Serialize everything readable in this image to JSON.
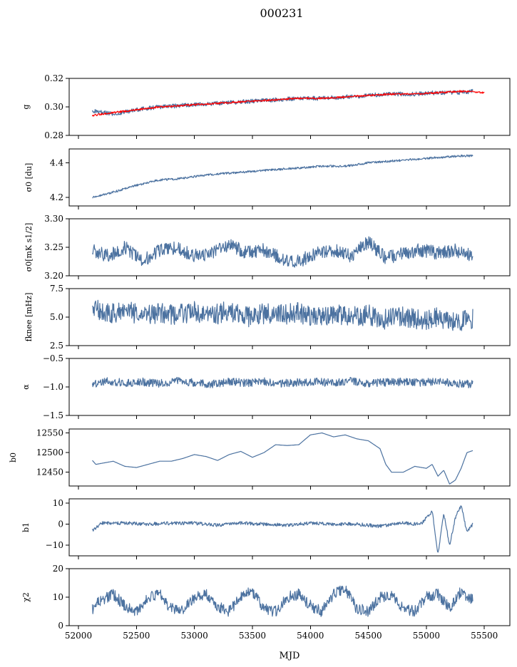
{
  "title": "000231",
  "x_label": "MJD",
  "x_ticks": [
    52000,
    52500,
    53000,
    53500,
    54000,
    54500,
    55000,
    55500
  ],
  "colors": {
    "series": "#4c72a0",
    "fit": "#ff0000"
  },
  "chart_data": [
    {
      "type": "line",
      "ylabel": "g",
      "ylim": [
        0.28,
        0.32
      ],
      "yticks": [
        "0.32",
        "0.30",
        "0.28"
      ],
      "xlim": [
        51920,
        55720
      ],
      "series": [
        {
          "role": "data",
          "x": [
            52120,
            52300,
            52500,
            52700,
            52900,
            53100,
            53300,
            53500,
            53700,
            53900,
            54100,
            54300,
            54500,
            54700,
            54900,
            55100,
            55300,
            55400
          ],
          "values": [
            0.297,
            0.295,
            0.298,
            0.3,
            0.301,
            0.302,
            0.303,
            0.304,
            0.305,
            0.306,
            0.306,
            0.307,
            0.308,
            0.309,
            0.309,
            0.31,
            0.31,
            0.311
          ]
        },
        {
          "role": "fit",
          "x": [
            52120,
            52300,
            52500,
            52700,
            52900,
            53100,
            53300,
            53500,
            53700,
            53900,
            54100,
            54300,
            54500,
            54700,
            54900,
            55100,
            55300,
            55500
          ],
          "values": [
            0.294,
            0.296,
            0.298,
            0.3,
            0.301,
            0.302,
            0.303,
            0.304,
            0.305,
            0.306,
            0.306,
            0.307,
            0.308,
            0.309,
            0.309,
            0.31,
            0.311,
            0.31
          ]
        }
      ]
    },
    {
      "type": "line",
      "ylabel": "σ0 [du]",
      "ylim": [
        4.15,
        4.48
      ],
      "yticks": [
        "4.4",
        "4.2"
      ],
      "xlim": [
        51920,
        55720
      ],
      "series": [
        {
          "role": "data",
          "x": [
            52120,
            52300,
            52500,
            52700,
            52900,
            53100,
            53300,
            53500,
            53700,
            53900,
            54100,
            54300,
            54500,
            54700,
            54900,
            55100,
            55300,
            55400
          ],
          "values": [
            4.2,
            4.23,
            4.27,
            4.3,
            4.31,
            4.33,
            4.34,
            4.35,
            4.36,
            4.37,
            4.38,
            4.38,
            4.4,
            4.41,
            4.42,
            4.43,
            4.44,
            4.44
          ]
        }
      ]
    },
    {
      "type": "line",
      "ylabel": "σ0[mK s1/2]",
      "ylim": [
        3.2,
        3.3
      ],
      "yticks": [
        "3.30",
        "3.25",
        "3.20"
      ],
      "xlim": [
        51920,
        55720
      ],
      "series": [
        {
          "role": "data",
          "x": [
            52120,
            52250,
            52400,
            52550,
            52700,
            52850,
            53000,
            53150,
            53300,
            53450,
            53600,
            53750,
            53900,
            54050,
            54200,
            54350,
            54500,
            54650,
            54800,
            54950,
            55100,
            55250,
            55400
          ],
          "values": [
            3.245,
            3.235,
            3.25,
            3.225,
            3.245,
            3.25,
            3.235,
            3.24,
            3.255,
            3.24,
            3.245,
            3.23,
            3.225,
            3.24,
            3.245,
            3.235,
            3.26,
            3.23,
            3.24,
            3.245,
            3.24,
            3.245,
            3.235
          ]
        }
      ]
    },
    {
      "type": "line",
      "ylabel": "fknee [mHz]",
      "ylim": [
        2.5,
        7.5
      ],
      "yticks": [
        "7.5",
        "5.0",
        "2.5"
      ],
      "xlim": [
        51920,
        55720
      ],
      "series": [
        {
          "role": "data",
          "x": [
            52120,
            52250,
            52400,
            52550,
            52700,
            52850,
            53000,
            53150,
            53300,
            53450,
            53600,
            53750,
            53900,
            54050,
            54200,
            54350,
            54500,
            54650,
            54800,
            54950,
            55100,
            55250,
            55400
          ],
          "values": [
            5.9,
            5.3,
            5.6,
            5.1,
            5.4,
            5.2,
            5.5,
            5.1,
            5.6,
            5.0,
            5.3,
            5.2,
            5.4,
            4.9,
            5.3,
            5.0,
            5.2,
            4.8,
            5.1,
            4.7,
            5.0,
            4.6,
            4.9
          ]
        }
      ]
    },
    {
      "type": "line",
      "ylabel": "α",
      "ylim": [
        -1.5,
        -0.5
      ],
      "yticks": [
        "−0.5",
        "−1.0",
        "−1.5"
      ],
      "xlim": [
        51920,
        55720
      ],
      "series": [
        {
          "role": "data",
          "x": [
            52120,
            52250,
            52400,
            52550,
            52700,
            52850,
            53000,
            53150,
            53300,
            53450,
            53600,
            53750,
            53900,
            54050,
            54200,
            54350,
            54500,
            54650,
            54800,
            54950,
            55100,
            55250,
            55400
          ],
          "values": [
            -0.95,
            -0.9,
            -0.93,
            -0.91,
            -0.94,
            -0.9,
            -0.92,
            -0.95,
            -0.91,
            -0.93,
            -0.9,
            -0.94,
            -0.92,
            -0.91,
            -0.93,
            -0.9,
            -0.94,
            -0.92,
            -0.91,
            -0.93,
            -0.9,
            -0.94,
            -0.95
          ]
        }
      ]
    },
    {
      "type": "line",
      "ylabel": "b0",
      "ylim": [
        12415,
        12560
      ],
      "yticks": [
        "12550",
        "12500",
        "12450"
      ],
      "xlim": [
        51920,
        55720
      ],
      "series": [
        {
          "role": "data",
          "x": [
            52120,
            52150,
            52300,
            52400,
            52500,
            52600,
            52700,
            52800,
            52900,
            53000,
            53100,
            53200,
            53300,
            53400,
            53500,
            53600,
            53700,
            53800,
            53900,
            54000,
            54100,
            54200,
            54300,
            54400,
            54500,
            54600,
            54650,
            54700,
            54800,
            54900,
            55000,
            55050,
            55100,
            55150,
            55200,
            55250,
            55300,
            55350,
            55400
          ],
          "values": [
            12480,
            12470,
            12478,
            12465,
            12462,
            12470,
            12478,
            12478,
            12485,
            12495,
            12490,
            12480,
            12495,
            12503,
            12488,
            12500,
            12520,
            12518,
            12520,
            12545,
            12550,
            12540,
            12545,
            12535,
            12530,
            12510,
            12470,
            12450,
            12450,
            12465,
            12460,
            12470,
            12440,
            12455,
            12420,
            12430,
            12460,
            12500,
            12505
          ]
        }
      ]
    },
    {
      "type": "line",
      "ylabel": "b1",
      "ylim": [
        -15,
        12
      ],
      "yticks": [
        "10",
        "0",
        "−10"
      ],
      "xlim": [
        51920,
        55720
      ],
      "series": [
        {
          "role": "data",
          "x": [
            52120,
            52200,
            52400,
            52600,
            52800,
            53000,
            53200,
            53400,
            53600,
            53800,
            54000,
            54200,
            54400,
            54600,
            54800,
            54950,
            55050,
            55100,
            55150,
            55200,
            55250,
            55300,
            55350,
            55400
          ],
          "values": [
            -3,
            0.5,
            0.5,
            0,
            0.5,
            0.5,
            -0.5,
            0.5,
            0,
            -0.5,
            0.5,
            0,
            0,
            -1,
            0.5,
            0,
            6,
            -14,
            5,
            -10,
            3,
            9,
            -4,
            0
          ]
        }
      ]
    },
    {
      "type": "line",
      "ylabel": "χ2",
      "ylim": [
        0,
        20
      ],
      "yticks": [
        "20",
        "10",
        "0"
      ],
      "xlim": [
        51920,
        55720
      ],
      "series": [
        {
          "role": "data",
          "x": [
            52120,
            52200,
            52300,
            52400,
            52500,
            52600,
            52700,
            52800,
            52900,
            53000,
            53100,
            53200,
            53300,
            53400,
            53500,
            53600,
            53700,
            53800,
            53900,
            54000,
            54100,
            54200,
            54300,
            54400,
            54500,
            54600,
            54700,
            54800,
            54900,
            55000,
            55100,
            55200,
            55300,
            55400
          ],
          "values": [
            6,
            9,
            11,
            7,
            5,
            10,
            11,
            6,
            5,
            10,
            11,
            7,
            5,
            10,
            12,
            6,
            5,
            10,
            11,
            7,
            5,
            11,
            13,
            6,
            5,
            10,
            11,
            6,
            5,
            10,
            11,
            6,
            12,
            9
          ]
        }
      ]
    }
  ]
}
